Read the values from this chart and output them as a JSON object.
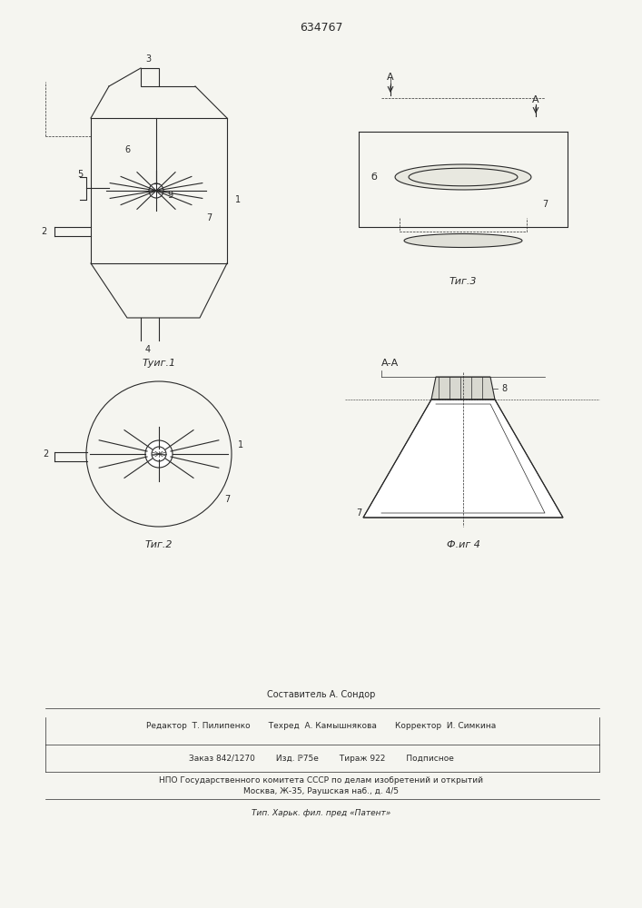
{
  "patent_number": "634767",
  "background_color": "#f5f5f0",
  "line_color": "#2a2a2a",
  "fig1_caption": "Τуиг.1",
  "fig2_caption": "Τиг.2",
  "fig3_caption": "Τиг.3",
  "fig4_caption": "Ф.иг 4",
  "section_label": "А-А",
  "composed_by": "Составитель А. Сондор",
  "editor_line": "Редактор  Т. Пилипенко       Техред  А. Камышнякова       Корректор  И. Симкина",
  "order_line": "Заказ 842/1270        Изд. ℙ75е        Тираж 922        Подписное",
  "npo_line": "НПО Государственного комитета СССР по делам изобретений и открытий",
  "moscow_line": "Москва, Ж-35, Раушская наб., д. 4/5",
  "tip_line": "Тип. Харьк. фил. пред «Патент»"
}
